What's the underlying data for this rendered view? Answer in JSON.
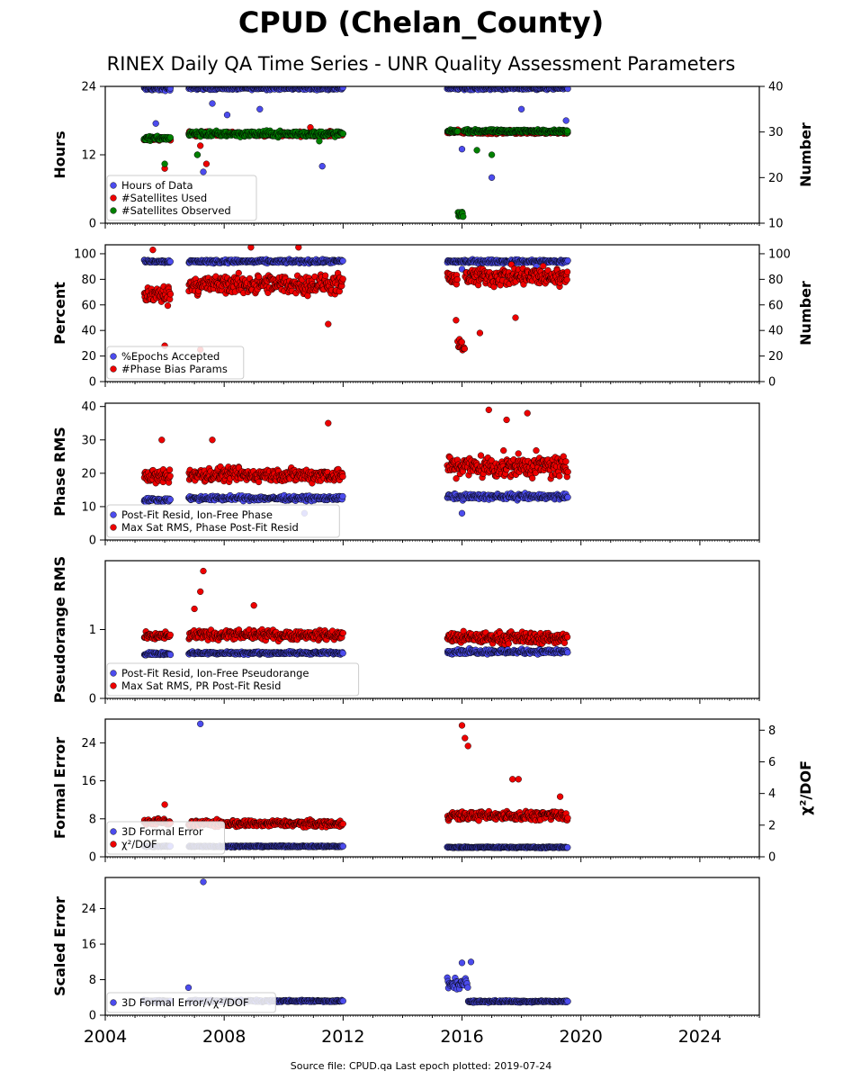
{
  "title": "CPUD (Chelan_County)",
  "subtitle": "RINEX Daily QA Time Series - UNR Quality Assessment Parameters",
  "footer": "Source file: CPUD.qa Last epoch plotted: 2019-07-24",
  "colors": {
    "blue": "#4c4cee",
    "red": "#ee0000",
    "green": "#008000",
    "edge": "#000000"
  },
  "chart_data": [
    {
      "type": "scatter",
      "ylabel": "Hours",
      "ylim": [
        0,
        24
      ],
      "yticks": [
        0,
        12,
        24
      ],
      "ylabel_right": "Number",
      "ylim_right": [
        10,
        40
      ],
      "yticks_right": [
        10,
        20,
        30,
        40
      ],
      "xlim": [
        2004,
        2026
      ],
      "legend_loc": "lower-left",
      "series": [
        {
          "name": "Hours of Data",
          "color": "blue",
          "axis": "left",
          "segments": [
            {
              "start": 2005.3,
              "end": 2006.2,
              "value": 23.6,
              "spread": 0.5
            },
            {
              "start": 2006.8,
              "end": 2012.0,
              "value": 23.7,
              "spread": 0.4
            },
            {
              "start": 2015.5,
              "end": 2019.56,
              "value": 23.7,
              "spread": 0.4
            }
          ],
          "outliers": [
            [
              2005.7,
              17.5
            ],
            [
              2005.9,
              15
            ],
            [
              2007.1,
              12
            ],
            [
              2007.3,
              9
            ],
            [
              2007.6,
              21
            ],
            [
              2008.1,
              19
            ],
            [
              2009.2,
              20
            ],
            [
              2011.3,
              10
            ],
            [
              2016.0,
              13
            ],
            [
              2017.0,
              8
            ],
            [
              2018.0,
              20
            ],
            [
              2019.5,
              18
            ]
          ]
        },
        {
          "name": "#Satellites Used",
          "color": "red",
          "axis": "right",
          "segments": [
            {
              "start": 2005.3,
              "end": 2006.2,
              "value": 28.5,
              "spread": 0.6
            },
            {
              "start": 2006.8,
              "end": 2012.0,
              "value": 29.5,
              "spread": 0.8
            },
            {
              "start": 2015.5,
              "end": 2019.56,
              "value": 30.0,
              "spread": 0.6
            }
          ],
          "outliers": [
            [
              2006.0,
              22
            ],
            [
              2007.2,
              27
            ],
            [
              2007.4,
              23
            ],
            [
              2010.9,
              31
            ]
          ]
        },
        {
          "name": "#Satellites Observed",
          "color": "green",
          "axis": "right",
          "segments": [
            {
              "start": 2005.3,
              "end": 2006.2,
              "value": 28.6,
              "spread": 0.7
            },
            {
              "start": 2006.8,
              "end": 2012.0,
              "value": 29.6,
              "spread": 0.9
            },
            {
              "start": 2015.5,
              "end": 2015.85,
              "value": 30.2,
              "spread": 0.4
            },
            {
              "start": 2015.85,
              "end": 2016.05,
              "value": 12.0,
              "spread": 0.8
            },
            {
              "start": 2016.05,
              "end": 2019.56,
              "value": 30.2,
              "spread": 0.5
            }
          ],
          "outliers": [
            [
              2006.0,
              23
            ],
            [
              2007.1,
              25
            ],
            [
              2011.2,
              28
            ],
            [
              2016.5,
              26
            ],
            [
              2017.0,
              25
            ]
          ]
        }
      ]
    },
    {
      "type": "scatter",
      "ylabel": "Percent",
      "ylim": [
        0,
        107
      ],
      "yticks": [
        0,
        20,
        40,
        60,
        80,
        100
      ],
      "ylabel_right": "Number",
      "ylim_right": [
        0,
        107
      ],
      "yticks_right": [
        0,
        20,
        40,
        60,
        80,
        100
      ],
      "xlim": [
        2004,
        2026
      ],
      "legend_loc": "lower-left",
      "series": [
        {
          "name": "%Epochs Accepted",
          "color": "blue",
          "axis": "left",
          "segments": [
            {
              "start": 2005.3,
              "end": 2006.2,
              "value": 94,
              "spread": 1.5
            },
            {
              "start": 2006.8,
              "end": 2012.0,
              "value": 94,
              "spread": 2
            },
            {
              "start": 2015.5,
              "end": 2019.56,
              "value": 94,
              "spread": 2
            }
          ],
          "outliers": [
            [
              2016.0,
              88
            ],
            [
              2018.5,
              90
            ]
          ]
        },
        {
          "name": "#Phase Bias Params",
          "color": "red",
          "axis": "right",
          "segments": [
            {
              "start": 2005.3,
              "end": 2006.2,
              "value": 68,
              "spread": 10
            },
            {
              "start": 2006.8,
              "end": 2012.0,
              "value": 76,
              "spread": 11
            },
            {
              "start": 2015.5,
              "end": 2015.85,
              "value": 80,
              "spread": 10
            },
            {
              "start": 2015.85,
              "end": 2016.1,
              "value": 28,
              "spread": 6
            },
            {
              "start": 2016.1,
              "end": 2019.56,
              "value": 82,
              "spread": 11
            }
          ],
          "outliers": [
            [
              2005.6,
              103
            ],
            [
              2006.0,
              28
            ],
            [
              2007.2,
              25
            ],
            [
              2008.9,
              105
            ],
            [
              2010.5,
              105
            ],
            [
              2011.5,
              45
            ],
            [
              2016.6,
              38
            ],
            [
              2017.8,
              50
            ],
            [
              2015.8,
              48
            ]
          ]
        }
      ]
    },
    {
      "type": "scatter",
      "ylabel": "Phase RMS",
      "ylim": [
        0,
        41
      ],
      "yticks": [
        0,
        10,
        20,
        30,
        40
      ],
      "xlim": [
        2004,
        2026
      ],
      "legend_loc": "lower-left",
      "series": [
        {
          "name": "Post-Fit Resid, Ion-Free Phase",
          "color": "blue",
          "axis": "left",
          "segments": [
            {
              "start": 2005.3,
              "end": 2006.2,
              "value": 12,
              "spread": 0.8
            },
            {
              "start": 2006.8,
              "end": 2012.0,
              "value": 12.5,
              "spread": 1.0
            },
            {
              "start": 2015.5,
              "end": 2019.56,
              "value": 13,
              "spread": 1.2
            }
          ],
          "outliers": [
            [
              2010.7,
              8
            ],
            [
              2016.0,
              8
            ]
          ]
        },
        {
          "name": "Max Sat RMS, Phase Post-Fit Resid",
          "color": "red",
          "axis": "left",
          "segments": [
            {
              "start": 2005.3,
              "end": 2006.2,
              "value": 19,
              "spread": 3
            },
            {
              "start": 2006.8,
              "end": 2012.0,
              "value": 19.5,
              "spread": 3
            },
            {
              "start": 2015.5,
              "end": 2019.56,
              "value": 22,
              "spread": 5
            }
          ],
          "outliers": [
            [
              2005.9,
              30
            ],
            [
              2007.6,
              30
            ],
            [
              2011.5,
              35
            ],
            [
              2016.9,
              39
            ],
            [
              2017.5,
              36
            ],
            [
              2018.2,
              38
            ]
          ]
        }
      ]
    },
    {
      "type": "scatter",
      "ylabel": "Pseudorange RMS",
      "ylim": [
        0,
        2.0
      ],
      "yticks": [
        0,
        1
      ],
      "xlim": [
        2004,
        2026
      ],
      "legend_loc": "lower-left",
      "series": [
        {
          "name": "Post-Fit Resid, Ion-Free Pseudorange",
          "color": "blue",
          "axis": "left",
          "segments": [
            {
              "start": 2005.3,
              "end": 2006.2,
              "value": 0.65,
              "spread": 0.03
            },
            {
              "start": 2006.8,
              "end": 2012.0,
              "value": 0.66,
              "spread": 0.03
            },
            {
              "start": 2015.5,
              "end": 2019.56,
              "value": 0.68,
              "spread": 0.05
            }
          ],
          "outliers": []
        },
        {
          "name": "Max Sat RMS, PR Post-Fit Resid",
          "color": "red",
          "axis": "left",
          "segments": [
            {
              "start": 2005.3,
              "end": 2006.2,
              "value": 0.9,
              "spread": 0.08
            },
            {
              "start": 2006.8,
              "end": 2012.0,
              "value": 0.92,
              "spread": 0.1
            },
            {
              "start": 2015.5,
              "end": 2019.56,
              "value": 0.88,
              "spread": 0.12
            }
          ],
          "outliers": [
            [
              2007.3,
              1.85
            ],
            [
              2007.2,
              1.55
            ],
            [
              2007.0,
              1.3
            ],
            [
              2009.0,
              1.35
            ]
          ]
        }
      ]
    },
    {
      "type": "scatter",
      "ylabel": "Formal Error",
      "ylim": [
        0,
        29
      ],
      "yticks": [
        0,
        8,
        16,
        24
      ],
      "ylabel_right": "χ²/DOF",
      "ylim_right": [
        0,
        8.7
      ],
      "yticks_right": [
        0,
        2,
        4,
        6,
        8
      ],
      "xlim": [
        2004,
        2026
      ],
      "legend_loc": "lower-left",
      "series": [
        {
          "name": "3D Formal Error",
          "color": "blue",
          "axis": "left",
          "segments": [
            {
              "start": 2005.3,
              "end": 2006.2,
              "value": 2.2,
              "spread": 0.2
            },
            {
              "start": 2006.8,
              "end": 2012.0,
              "value": 2.2,
              "spread": 0.2
            },
            {
              "start": 2015.5,
              "end": 2019.56,
              "value": 2.0,
              "spread": 0.2
            }
          ],
          "outliers": [
            [
              2007.2,
              28
            ]
          ]
        },
        {
          "name": "χ²/DOF",
          "color": "red",
          "axis": "right",
          "segments": [
            {
              "start": 2005.3,
              "end": 2006.2,
              "value": 2.2,
              "spread": 0.3
            },
            {
              "start": 2006.8,
              "end": 2012.0,
              "value": 2.1,
              "spread": 0.3
            },
            {
              "start": 2015.5,
              "end": 2019.56,
              "value": 2.6,
              "spread": 0.4
            }
          ],
          "outliers": [
            [
              2016.0,
              8.3
            ],
            [
              2016.1,
              7.5
            ],
            [
              2016.2,
              7.0
            ],
            [
              2017.7,
              4.9
            ],
            [
              2017.9,
              4.9
            ],
            [
              2019.3,
              3.8
            ],
            [
              2006.0,
              3.3
            ]
          ]
        }
      ]
    },
    {
      "type": "scatter",
      "ylabel": "Scaled Error",
      "ylim": [
        0,
        31
      ],
      "yticks": [
        0,
        8,
        16,
        24
      ],
      "xlim": [
        2004,
        2026
      ],
      "xticks": [
        2004,
        2008,
        2012,
        2016,
        2020,
        2024
      ],
      "legend_loc": "lower-left",
      "series": [
        {
          "name": "3D Formal Error/√χ²/DOF",
          "color": "blue",
          "axis": "left",
          "segments": [
            {
              "start": 2005.3,
              "end": 2006.2,
              "value": 3.2,
              "spread": 0.3
            },
            {
              "start": 2006.8,
              "end": 2012.0,
              "value": 3.2,
              "spread": 0.3
            },
            {
              "start": 2015.5,
              "end": 2016.2,
              "value": 7.0,
              "spread": 2.0
            },
            {
              "start": 2016.2,
              "end": 2019.56,
              "value": 3.1,
              "spread": 0.3
            }
          ],
          "outliers": [
            [
              2007.3,
              30
            ],
            [
              2006.8,
              6.2
            ],
            [
              2016.0,
              11.8
            ],
            [
              2016.3,
              12.0
            ]
          ]
        }
      ]
    }
  ]
}
